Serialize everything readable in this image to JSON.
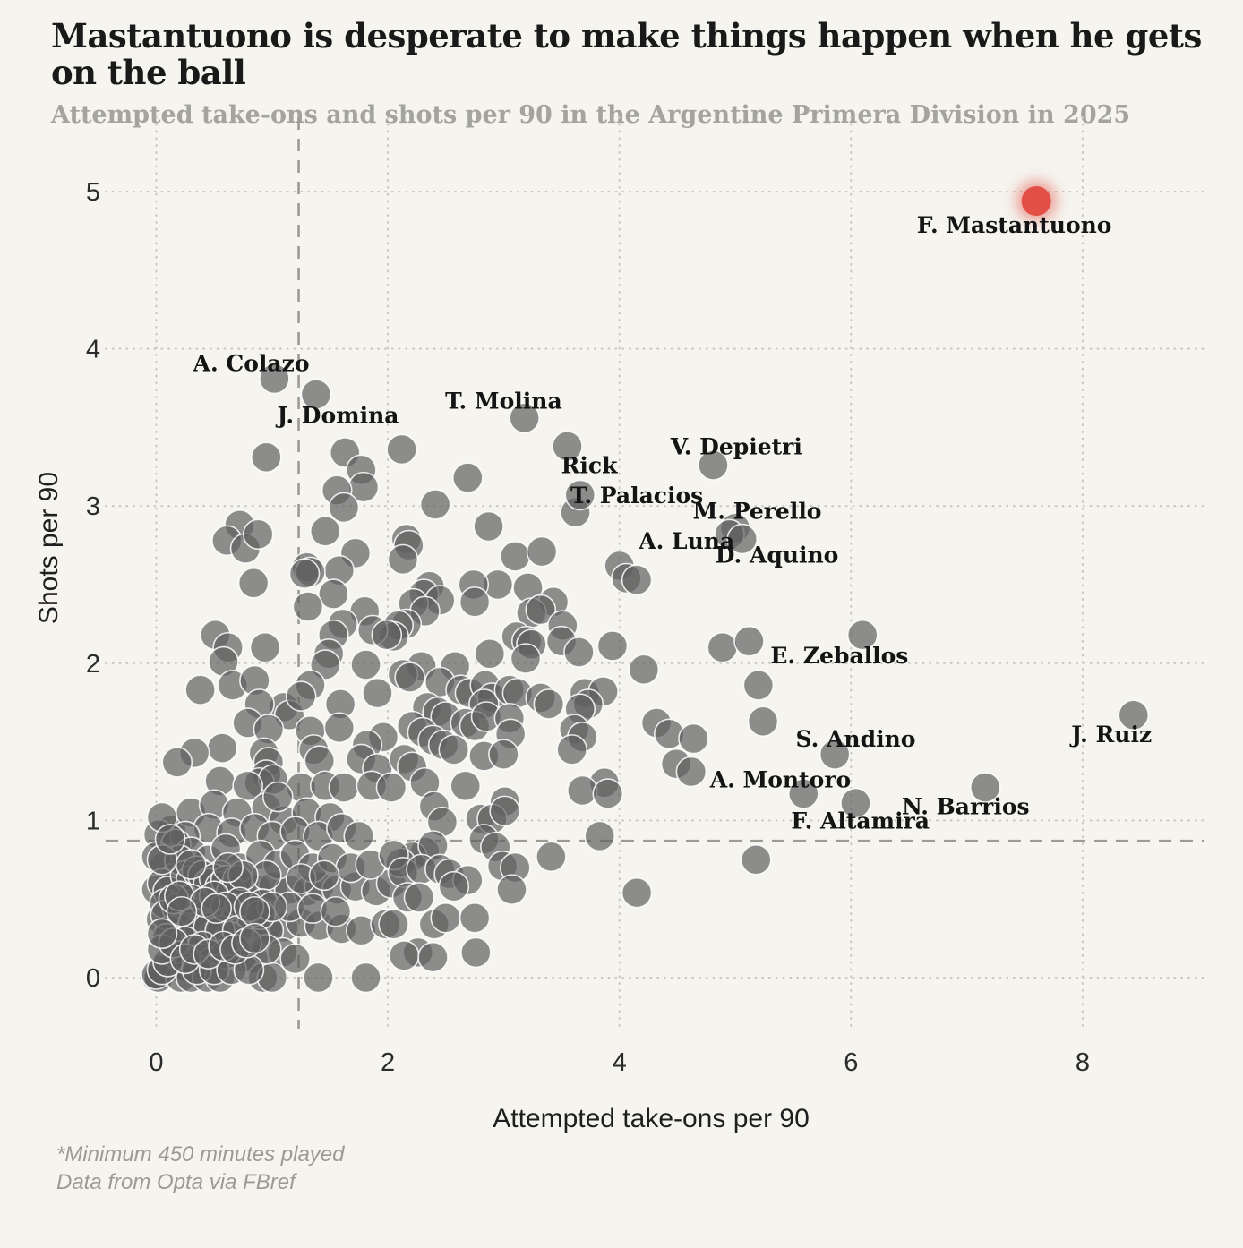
{
  "header": {
    "title": "Mastantuono is desperate to make things happen when he gets on the ball",
    "subtitle": "Attempted take-ons and shots per 90 in the Argentine Primera Division in 2025"
  },
  "footer": {
    "line1": "*Minimum 450 minutes played",
    "line2": "Data from Opta via FBref"
  },
  "colors": {
    "background": "#f5f4ef",
    "point_fill": "#5f5f5f",
    "point_stroke": "#ffffff",
    "highlight_red": "#e14b41",
    "grid": "#c7c6bf",
    "median_line": "#9b9a93",
    "label_text": "#141414",
    "muted_text": "#9b9a95"
  },
  "chart_data": {
    "type": "scatter",
    "title": "Mastantuono is desperate to make things happen when he gets on the ball",
    "subtitle": "Attempted take-ons and shots per 90 in the Argentine Primera Division in 2025",
    "xlabel": "Attempted take-ons per 90",
    "ylabel": "Shots per 90",
    "xlim": [
      -0.4,
      9.4
    ],
    "ylim": [
      -0.3,
      5.5
    ],
    "xticks": [
      0,
      2,
      4,
      6,
      8
    ],
    "yticks": [
      0,
      1,
      2,
      3,
      4,
      5
    ],
    "grid": "dotted",
    "median_x": 1.23,
    "median_y": 0.87,
    "highlight": {
      "name": "F. Mastantuono",
      "x": 7.6,
      "y": 4.94,
      "label_x": 7.41,
      "label_y": 4.79,
      "color": "#e14b41"
    },
    "labeled_points": [
      {
        "name": "A. Colazo",
        "x": 1.02,
        "y": 3.81,
        "label_x": 0.82,
        "label_y": 3.91
      },
      {
        "name": "J. Domina",
        "x": 1.38,
        "y": 3.71,
        "label_x": 1.57,
        "label_y": 3.58
      },
      {
        "name": "T. Molina",
        "x": 3.18,
        "y": 3.56,
        "label_x": 3.0,
        "label_y": 3.67
      },
      {
        "name": "Rick",
        "x": 3.55,
        "y": 3.38,
        "label_x": 3.74,
        "label_y": 3.26
      },
      {
        "name": "V. Depietri",
        "x": 4.81,
        "y": 3.26,
        "label_x": 5.01,
        "label_y": 3.38
      },
      {
        "name": "T. Palacios",
        "x": 3.66,
        "y": 3.07,
        "label_x": 4.15,
        "label_y": 3.07
      },
      {
        "name": "M. Perello",
        "x": 5.0,
        "y": 2.86,
        "label_x": 5.19,
        "label_y": 2.97
      },
      {
        "name": "A. Luna",
        "x": 4.95,
        "y": 2.82,
        "label_x": 4.58,
        "label_y": 2.78
      },
      {
        "name": "D. Aquino",
        "x": 5.06,
        "y": 2.79,
        "label_x": 5.36,
        "label_y": 2.69
      },
      {
        "name": "E. Zeballos",
        "x": 6.1,
        "y": 2.18,
        "label_x": 5.9,
        "label_y": 2.05
      },
      {
        "name": "S. Andino",
        "x": 5.86,
        "y": 1.42,
        "label_x": 6.04,
        "label_y": 1.52
      },
      {
        "name": "A. Montoro",
        "x": 5.59,
        "y": 1.17,
        "label_x": 5.39,
        "label_y": 1.26
      },
      {
        "name": "F. Altamira",
        "x": 6.04,
        "y": 1.11,
        "label_x": 6.08,
        "label_y": 1.0
      },
      {
        "name": "N. Barrios",
        "x": 7.16,
        "y": 1.21,
        "label_x": 6.99,
        "label_y": 1.09
      },
      {
        "name": "J. Ruiz",
        "x": 8.44,
        "y": 1.67,
        "label_x": 8.25,
        "label_y": 1.55
      }
    ],
    "points": [
      [
        0.95,
        3.31
      ],
      [
        1.63,
        3.34
      ],
      [
        1.77,
        3.23
      ],
      [
        1.79,
        3.12
      ],
      [
        1.56,
        3.1
      ],
      [
        1.62,
        2.99
      ],
      [
        1.46,
        2.84
      ],
      [
        0.72,
        2.88
      ],
      [
        0.61,
        2.78
      ],
      [
        0.77,
        2.73
      ],
      [
        0.88,
        2.82
      ],
      [
        0.84,
        2.51
      ],
      [
        1.72,
        2.7
      ],
      [
        1.3,
        2.61
      ],
      [
        1.58,
        2.59
      ],
      [
        1.33,
        2.58
      ],
      [
        1.28,
        2.57
      ],
      [
        2.12,
        3.36
      ],
      [
        2.69,
        3.18
      ],
      [
        2.41,
        3.01
      ],
      [
        2.87,
        2.87
      ],
      [
        2.16,
        2.79
      ],
      [
        2.18,
        2.75
      ],
      [
        2.13,
        2.66
      ],
      [
        3.62,
        2.96
      ],
      [
        3.1,
        2.68
      ],
      [
        3.33,
        2.71
      ],
      [
        4.0,
        2.62
      ],
      [
        4.06,
        2.54
      ],
      [
        4.15,
        2.53
      ],
      [
        2.95,
        2.5
      ],
      [
        2.74,
        2.5
      ],
      [
        2.36,
        2.49
      ],
      [
        2.31,
        2.44
      ],
      [
        2.45,
        2.4
      ],
      [
        2.75,
        2.39
      ],
      [
        2.22,
        2.38
      ],
      [
        2.32,
        2.33
      ],
      [
        3.21,
        2.48
      ],
      [
        3.43,
        2.39
      ],
      [
        3.24,
        2.32
      ],
      [
        3.32,
        2.34
      ],
      [
        3.11,
        2.17
      ],
      [
        3.2,
        2.14
      ],
      [
        3.24,
        2.12
      ],
      [
        3.51,
        2.24
      ],
      [
        3.5,
        2.14
      ],
      [
        3.65,
        2.07
      ],
      [
        3.94,
        2.11
      ],
      [
        2.16,
        2.25
      ],
      [
        2.09,
        2.24
      ],
      [
        2.05,
        2.17
      ],
      [
        1.53,
        2.44
      ],
      [
        1.31,
        2.36
      ],
      [
        1.8,
        2.33
      ],
      [
        1.61,
        2.25
      ],
      [
        1.53,
        2.18
      ],
      [
        1.87,
        2.21
      ],
      [
        1.99,
        2.18
      ],
      [
        0.51,
        2.18
      ],
      [
        0.62,
        2.1
      ],
      [
        0.58,
        2.01
      ],
      [
        0.94,
        2.1
      ],
      [
        1.49,
        2.06
      ],
      [
        2.88,
        2.06
      ],
      [
        3.19,
        2.03
      ],
      [
        4.89,
        2.1
      ],
      [
        5.12,
        2.14
      ],
      [
        1.46,
        1.99
      ],
      [
        1.81,
        1.99
      ],
      [
        4.21,
        1.96
      ],
      [
        2.29,
        1.98
      ],
      [
        2.13,
        1.93
      ],
      [
        2.19,
        1.91
      ],
      [
        2.58,
        1.98
      ],
      [
        2.45,
        1.88
      ],
      [
        2.63,
        1.83
      ],
      [
        2.71,
        1.81
      ],
      [
        2.84,
        1.86
      ],
      [
        2.9,
        1.78
      ],
      [
        2.83,
        1.74
      ],
      [
        3.05,
        1.83
      ],
      [
        3.12,
        1.81
      ],
      [
        3.32,
        1.78
      ],
      [
        3.39,
        1.74
      ],
      [
        3.7,
        1.81
      ],
      [
        3.86,
        1.82
      ],
      [
        3.73,
        1.74
      ],
      [
        3.66,
        1.71
      ],
      [
        0.38,
        1.83
      ],
      [
        0.66,
        1.86
      ],
      [
        0.85,
        1.89
      ],
      [
        1.33,
        1.86
      ],
      [
        1.1,
        1.72
      ],
      [
        1.15,
        1.67
      ],
      [
        0.89,
        1.74
      ],
      [
        1.25,
        1.79
      ],
      [
        1.59,
        1.74
      ],
      [
        1.91,
        1.81
      ],
      [
        2.34,
        1.72
      ],
      [
        2.43,
        1.69
      ],
      [
        2.5,
        1.66
      ],
      [
        5.2,
        1.86
      ],
      [
        5.24,
        1.63
      ],
      [
        1.96,
        1.53
      ],
      [
        1.82,
        1.48
      ],
      [
        0.79,
        1.62
      ],
      [
        0.97,
        1.58
      ],
      [
        1.33,
        1.57
      ],
      [
        1.58,
        1.59
      ],
      [
        2.21,
        1.6
      ],
      [
        2.3,
        1.56
      ],
      [
        2.67,
        1.62
      ],
      [
        2.75,
        1.6
      ],
      [
        2.85,
        1.66
      ],
      [
        3.05,
        1.65
      ],
      [
        3.06,
        1.55
      ],
      [
        3.61,
        1.58
      ],
      [
        3.68,
        1.53
      ],
      [
        4.32,
        1.62
      ],
      [
        4.43,
        1.55
      ],
      [
        4.64,
        1.52
      ],
      [
        3.59,
        1.45
      ],
      [
        1.36,
        1.45
      ],
      [
        0.57,
        1.46
      ],
      [
        0.33,
        1.43
      ],
      [
        0.18,
        1.37
      ],
      [
        0.93,
        1.43
      ],
      [
        0.97,
        1.37
      ],
      [
        0.95,
        1.29
      ],
      [
        0.89,
        1.24
      ],
      [
        1.01,
        1.26
      ],
      [
        1.41,
        1.38
      ],
      [
        1.77,
        1.39
      ],
      [
        1.91,
        1.33
      ],
      [
        0.55,
        1.25
      ],
      [
        2.39,
        1.51
      ],
      [
        2.48,
        1.48
      ],
      [
        2.57,
        1.45
      ],
      [
        2.14,
        1.39
      ],
      [
        2.21,
        1.34
      ],
      [
        2.83,
        1.41
      ],
      [
        3.0,
        1.42
      ],
      [
        4.49,
        1.36
      ],
      [
        4.62,
        1.31
      ],
      [
        2.32,
        1.24
      ],
      [
        2.67,
        1.22
      ],
      [
        3.87,
        1.24
      ],
      [
        3.01,
        1.12
      ],
      [
        3.68,
        1.19
      ],
      [
        3.9,
        1.17
      ],
      [
        2.4,
        1.09
      ],
      [
        2.47,
        0.99
      ],
      [
        2.8,
        1.01
      ],
      [
        2.9,
        1.01
      ],
      [
        3.01,
        1.06
      ],
      [
        0.13,
        0.94
      ],
      [
        0.02,
        0.91
      ],
      [
        0.79,
        1.22
      ],
      [
        1.25,
        1.21
      ],
      [
        1.46,
        1.22
      ],
      [
        1.62,
        1.21
      ],
      [
        1.86,
        1.22
      ],
      [
        2.03,
        1.21
      ],
      [
        0.05,
        1.02
      ],
      [
        0.3,
        1.05
      ],
      [
        0.5,
        1.1
      ],
      [
        0.7,
        1.05
      ],
      [
        0.95,
        1.08
      ],
      [
        1.1,
        1.0
      ],
      [
        1.3,
        1.05
      ],
      [
        1.5,
        1.02
      ],
      [
        1.05,
        1.15
      ],
      [
        0.45,
        0.95
      ],
      [
        0.65,
        0.92
      ],
      [
        0.85,
        0.95
      ],
      [
        1.0,
        0.9
      ],
      [
        1.2,
        0.93
      ],
      [
        1.4,
        0.9
      ],
      [
        1.6,
        0.95
      ],
      [
        1.75,
        0.9
      ],
      [
        0.25,
        0.9
      ],
      [
        0.17,
        0.85
      ],
      [
        0.07,
        0.71
      ],
      [
        0.0,
        0.77
      ],
      [
        0.0,
        0.56
      ],
      [
        0.22,
        0.58
      ],
      [
        0.35,
        0.56
      ],
      [
        0.48,
        0.58
      ],
      [
        0.61,
        0.56
      ],
      [
        0.74,
        0.58
      ],
      [
        0.87,
        0.56
      ],
      [
        1.01,
        0.58
      ],
      [
        1.15,
        0.56
      ],
      [
        1.31,
        0.55
      ],
      [
        1.41,
        0.58
      ],
      [
        1.56,
        0.56
      ],
      [
        1.72,
        0.58
      ],
      [
        1.9,
        0.55
      ],
      [
        2.03,
        0.6
      ],
      [
        0.3,
        0.8
      ],
      [
        0.45,
        0.75
      ],
      [
        0.6,
        0.82
      ],
      [
        0.72,
        0.7
      ],
      [
        0.9,
        0.78
      ],
      [
        1.05,
        0.72
      ],
      [
        1.2,
        0.78
      ],
      [
        1.35,
        0.7
      ],
      [
        1.52,
        0.76
      ],
      [
        1.68,
        0.7
      ],
      [
        1.85,
        0.72
      ],
      [
        0.15,
        0.63
      ],
      [
        0.55,
        0.65
      ],
      [
        0.95,
        0.65
      ],
      [
        1.25,
        0.63
      ],
      [
        1.45,
        0.65
      ],
      [
        2.32,
        0.8
      ],
      [
        2.21,
        0.77
      ],
      [
        2.11,
        0.73
      ],
      [
        2.39,
        0.84
      ],
      [
        2.83,
        0.88
      ],
      [
        2.93,
        0.83
      ],
      [
        3.83,
        0.9
      ],
      [
        3.41,
        0.77
      ],
      [
        2.05,
        0.78
      ],
      [
        2.13,
        0.67
      ],
      [
        2.29,
        0.69
      ],
      [
        2.45,
        0.69
      ],
      [
        2.53,
        0.66
      ],
      [
        2.69,
        0.62
      ],
      [
        2.57,
        0.58
      ],
      [
        2.99,
        0.71
      ],
      [
        3.1,
        0.7
      ],
      [
        3.07,
        0.56
      ],
      [
        5.18,
        0.75
      ],
      [
        0.05,
        0.6
      ],
      [
        0.1,
        0.55
      ],
      [
        0.2,
        0.75
      ],
      [
        0.25,
        0.65
      ],
      [
        0.3,
        0.62
      ],
      [
        0.35,
        0.68
      ],
      [
        0.4,
        0.65
      ],
      [
        0.45,
        0.6
      ],
      [
        0.5,
        0.63
      ],
      [
        0.55,
        0.58
      ],
      [
        0.6,
        0.62
      ],
      [
        0.65,
        0.55
      ],
      [
        0.7,
        0.62
      ],
      [
        0.75,
        0.65
      ],
      [
        0.62,
        0.7
      ],
      [
        0.05,
        0.75
      ],
      [
        0.12,
        0.88
      ],
      [
        0.3,
        0.72
      ],
      [
        0.04,
        0.37
      ],
      [
        0.07,
        0.47
      ],
      [
        0.18,
        0.44
      ],
      [
        0.29,
        0.42
      ],
      [
        0.43,
        0.4
      ],
      [
        0.56,
        0.38
      ],
      [
        0.69,
        0.37
      ],
      [
        0.83,
        0.35
      ],
      [
        0.96,
        0.33
      ],
      [
        1.1,
        0.32
      ],
      [
        1.25,
        0.35
      ],
      [
        1.41,
        0.33
      ],
      [
        1.6,
        0.31
      ],
      [
        1.77,
        0.3
      ],
      [
        1.98,
        0.34
      ],
      [
        2.17,
        0.51
      ],
      [
        2.27,
        0.51
      ],
      [
        2.4,
        0.34
      ],
      [
        2.5,
        0.38
      ],
      [
        2.75,
        0.38
      ],
      [
        2.05,
        0.34
      ],
      [
        4.15,
        0.54
      ],
      [
        0.3,
        0.5
      ],
      [
        0.5,
        0.52
      ],
      [
        0.72,
        0.48
      ],
      [
        0.92,
        0.47
      ],
      [
        1.15,
        0.45
      ],
      [
        1.35,
        0.44
      ],
      [
        1.55,
        0.42
      ],
      [
        0.21,
        0.31
      ],
      [
        0.37,
        0.3
      ],
      [
        0.51,
        0.28
      ],
      [
        0.64,
        0.26
      ],
      [
        0.97,
        0.3
      ],
      [
        0.9,
        0.4
      ],
      [
        1.0,
        0.45
      ],
      [
        0.12,
        0.3
      ],
      [
        0.08,
        0.4
      ],
      [
        0.15,
        0.5
      ],
      [
        0.2,
        0.52
      ],
      [
        0.32,
        0.35
      ],
      [
        0.45,
        0.32
      ],
      [
        0.55,
        0.3
      ],
      [
        0.6,
        0.45
      ],
      [
        0.7,
        0.3
      ],
      [
        0.8,
        0.45
      ],
      [
        0.42,
        0.48
      ],
      [
        0.52,
        0.44
      ],
      [
        0.22,
        0.42
      ],
      [
        0.85,
        0.42
      ],
      [
        0.09,
        0.25
      ],
      [
        0.25,
        0.23
      ],
      [
        0.4,
        0.2
      ],
      [
        0.74,
        0.13
      ],
      [
        0.84,
        0.12
      ],
      [
        0.18,
        0.14
      ],
      [
        0.38,
        0.12
      ],
      [
        0.48,
        0.1
      ],
      [
        0.13,
        0.07
      ],
      [
        0.27,
        0.06
      ],
      [
        2.26,
        0.16
      ],
      [
        2.14,
        0.14
      ],
      [
        2.39,
        0.13
      ],
      [
        2.76,
        0.16
      ],
      [
        1.09,
        0.16
      ],
      [
        0.92,
        0.0
      ],
      [
        0.0,
        0.0
      ],
      [
        0.01,
        0.01
      ],
      [
        0.02,
        0.0
      ],
      [
        0.0,
        0.02
      ],
      [
        0.21,
        0.0
      ],
      [
        0.3,
        0.0
      ],
      [
        0.44,
        0.0
      ],
      [
        0.55,
        0.0
      ],
      [
        1.0,
        0.0
      ],
      [
        1.4,
        0.0
      ],
      [
        1.81,
        0.0
      ],
      [
        0.6,
        0.15
      ],
      [
        0.95,
        0.18
      ],
      [
        1.2,
        0.12
      ],
      [
        0.35,
        0.05
      ],
      [
        0.5,
        0.05
      ],
      [
        0.65,
        0.05
      ],
      [
        0.8,
        0.05
      ],
      [
        0.05,
        0.05
      ],
      [
        0.1,
        0.1
      ],
      [
        0.05,
        0.18
      ],
      [
        0.15,
        0.22
      ],
      [
        0.25,
        0.12
      ],
      [
        0.33,
        0.18
      ],
      [
        0.45,
        0.15
      ],
      [
        0.58,
        0.2
      ],
      [
        0.68,
        0.18
      ],
      [
        0.78,
        0.22
      ],
      [
        0.85,
        0.25
      ],
      [
        0.05,
        0.28
      ]
    ]
  }
}
